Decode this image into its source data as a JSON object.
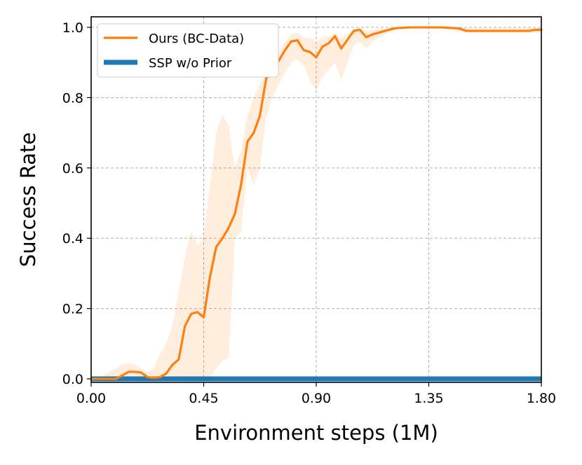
{
  "chart_data": {
    "type": "line",
    "title": "",
    "xlabel": "Environment steps (1M)",
    "ylabel": "Success Rate",
    "xlim": [
      0.0,
      1.8
    ],
    "ylim": [
      -0.01,
      1.03
    ],
    "grid": true,
    "legend_position": "top-left",
    "x_ticks": [
      "0.00",
      "0.45",
      "0.90",
      "1.35",
      "1.80"
    ],
    "x_tick_values": [
      0.0,
      0.45,
      0.9,
      1.35,
      1.8
    ],
    "y_ticks": [
      "0.0",
      "0.2",
      "0.4",
      "0.6",
      "0.8",
      "1.0"
    ],
    "y_tick_values": [
      0.0,
      0.2,
      0.4,
      0.6,
      0.8,
      1.0
    ],
    "series": [
      {
        "name": "Ours (BC-Data)",
        "color": "#ff7f0e",
        "band_color": "#ff7f0e",
        "x": [
          0.0,
          0.025,
          0.05,
          0.075,
          0.1,
          0.125,
          0.15,
          0.175,
          0.2,
          0.225,
          0.25,
          0.275,
          0.3,
          0.325,
          0.35,
          0.375,
          0.4,
          0.425,
          0.45,
          0.475,
          0.5,
          0.525,
          0.55,
          0.575,
          0.6,
          0.625,
          0.65,
          0.675,
          0.7,
          0.725,
          0.75,
          0.775,
          0.8,
          0.825,
          0.85,
          0.875,
          0.9,
          0.925,
          0.95,
          0.975,
          1.0,
          1.025,
          1.05,
          1.075,
          1.1,
          1.125,
          1.15,
          1.175,
          1.2,
          1.225,
          1.25,
          1.275,
          1.3,
          1.325,
          1.35,
          1.375,
          1.4,
          1.425,
          1.45,
          1.475,
          1.5,
          1.525,
          1.55,
          1.575,
          1.6,
          1.625,
          1.65,
          1.675,
          1.7,
          1.725,
          1.75,
          1.775,
          1.8
        ],
        "y": [
          0.0,
          0.0,
          0.0,
          0.0,
          0.0,
          0.01,
          0.02,
          0.02,
          0.018,
          0.005,
          0.003,
          0.005,
          0.015,
          0.04,
          0.055,
          0.15,
          0.185,
          0.19,
          0.175,
          0.29,
          0.375,
          0.4,
          0.43,
          0.47,
          0.555,
          0.675,
          0.7,
          0.75,
          0.855,
          0.875,
          0.905,
          0.935,
          0.96,
          0.963,
          0.935,
          0.93,
          0.915,
          0.945,
          0.955,
          0.975,
          0.94,
          0.965,
          0.99,
          0.993,
          0.972,
          0.98,
          0.985,
          0.99,
          0.995,
          0.998,
          0.999,
          1.0,
          1.0,
          1.0,
          1.0,
          1.0,
          1.0,
          0.999,
          0.998,
          0.996,
          0.99,
          0.99,
          0.99,
          0.99,
          0.99,
          0.99,
          0.99,
          0.99,
          0.99,
          0.99,
          0.99,
          0.993,
          0.993
        ],
        "lower": [
          0.0,
          0.0,
          0.0,
          0.0,
          0.0,
          0.0,
          0.0,
          0.0,
          0.0,
          0.0,
          0.0,
          0.0,
          0.0,
          0.0,
          0.0,
          0.0,
          0.0,
          0.0,
          0.0,
          0.0,
          0.03,
          0.05,
          0.06,
          0.4,
          0.42,
          0.6,
          0.55,
          0.6,
          0.75,
          0.8,
          0.84,
          0.87,
          0.9,
          0.91,
          0.89,
          0.85,
          0.82,
          0.86,
          0.88,
          0.9,
          0.85,
          0.9,
          0.95,
          0.96,
          0.94,
          0.96,
          0.97,
          0.98,
          0.99,
          0.995,
          0.997,
          0.998,
          0.998,
          0.998,
          0.998,
          0.997,
          0.996,
          0.995,
          0.993,
          0.99,
          0.985,
          0.985,
          0.985,
          0.985,
          0.985,
          0.985,
          0.985,
          0.985,
          0.985,
          0.985,
          0.985,
          0.985,
          0.985
        ],
        "upper": [
          0.0,
          0.0,
          0.01,
          0.02,
          0.03,
          0.04,
          0.045,
          0.04,
          0.03,
          0.02,
          0.03,
          0.07,
          0.1,
          0.15,
          0.25,
          0.35,
          0.42,
          0.38,
          0.4,
          0.55,
          0.7,
          0.75,
          0.72,
          0.6,
          0.65,
          0.75,
          0.8,
          0.84,
          0.87,
          0.9,
          0.93,
          0.96,
          0.98,
          0.985,
          0.97,
          0.97,
          0.96,
          0.97,
          0.975,
          0.985,
          0.97,
          0.98,
          0.995,
          0.997,
          0.99,
          0.993,
          0.995,
          0.997,
          0.999,
          1.0,
          1.0,
          1.0,
          1.0,
          1.0,
          1.0,
          1.0,
          1.0,
          1.0,
          1.0,
          1.0,
          0.998,
          0.998,
          0.998,
          0.998,
          0.998,
          0.998,
          0.998,
          0.998,
          0.998,
          0.998,
          0.998,
          0.998,
          0.998
        ]
      },
      {
        "name": "SSP w/o Prior",
        "color": "#1f77b4",
        "x": [
          0.0,
          1.8
        ],
        "y": [
          0.0,
          0.0
        ]
      }
    ]
  }
}
